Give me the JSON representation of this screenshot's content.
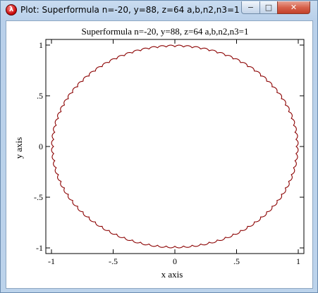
{
  "window": {
    "title": "Plot: Superformula n=-20, y=88, z=64 a,b,n2,n3=1",
    "buttons": {
      "minimize": "−",
      "maximize": "□",
      "close": "✕"
    }
  },
  "chart_data": {
    "type": "line",
    "title": "Superformula n=-20, y=88, z=64 a,b,n2,n3=1",
    "xlabel": "x axis",
    "ylabel": "y axis",
    "xlim": [
      -1,
      1
    ],
    "ylim": [
      -1,
      1
    ],
    "xticks": [
      {
        "value": -1,
        "label": "-1"
      },
      {
        "value": -0.5,
        "label": "-.5"
      },
      {
        "value": 0,
        "label": "0"
      },
      {
        "value": 0.5,
        "label": ".5"
      },
      {
        "value": 1,
        "label": "1"
      }
    ],
    "yticks": [
      {
        "value": -1,
        "label": "-1"
      },
      {
        "value": -0.5,
        "label": "-.5"
      },
      {
        "value": 0,
        "label": "0"
      },
      {
        "value": 0.5,
        "label": ".5"
      },
      {
        "value": 1,
        "label": "1"
      }
    ],
    "grid": false,
    "series": [
      {
        "color": "#8b0000",
        "formula": {
          "m": 88,
          "n1": -20,
          "n2": 1,
          "n3": 1,
          "a": 1,
          "b": 1,
          "samples": 1800
        }
      }
    ]
  }
}
